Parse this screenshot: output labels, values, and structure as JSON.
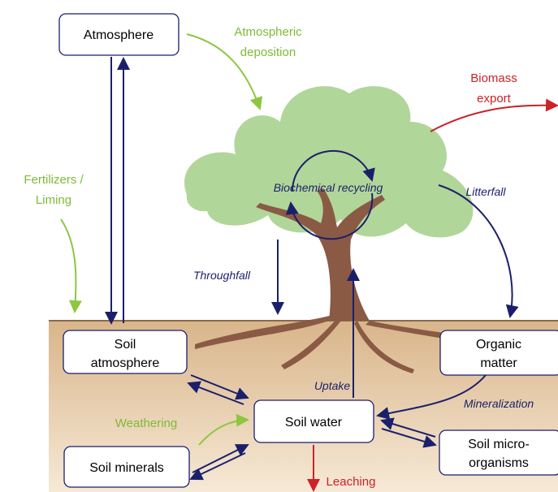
{
  "boxes": {
    "atmosphere": [
      "Atmosphere"
    ],
    "soil_atmosphere": [
      "Soil",
      "atmosphere"
    ],
    "organic_matter": [
      "Organic",
      "matter"
    ],
    "soil_water": [
      "Soil water"
    ],
    "soil_minerals": [
      "Soil minerals"
    ],
    "soil_microorganisms": [
      "Soil micro-",
      "organisms"
    ]
  },
  "fluxes": {
    "atmospheric_deposition": [
      "Atmospheric",
      "deposition"
    ],
    "biomass_export": [
      "Biomass",
      "export"
    ],
    "fertilizers": [
      "Fertilizers /",
      "Liming"
    ],
    "biochemical_recycling": [
      "Biochemical recycling"
    ],
    "litterfall": [
      "Litterfall"
    ],
    "throughfall": [
      "Throughfall"
    ],
    "uptake": [
      "Uptake"
    ],
    "mineralization": [
      "Mineralization"
    ],
    "weathering": [
      "Weathering"
    ],
    "leaching": [
      "Leaching"
    ]
  }
}
